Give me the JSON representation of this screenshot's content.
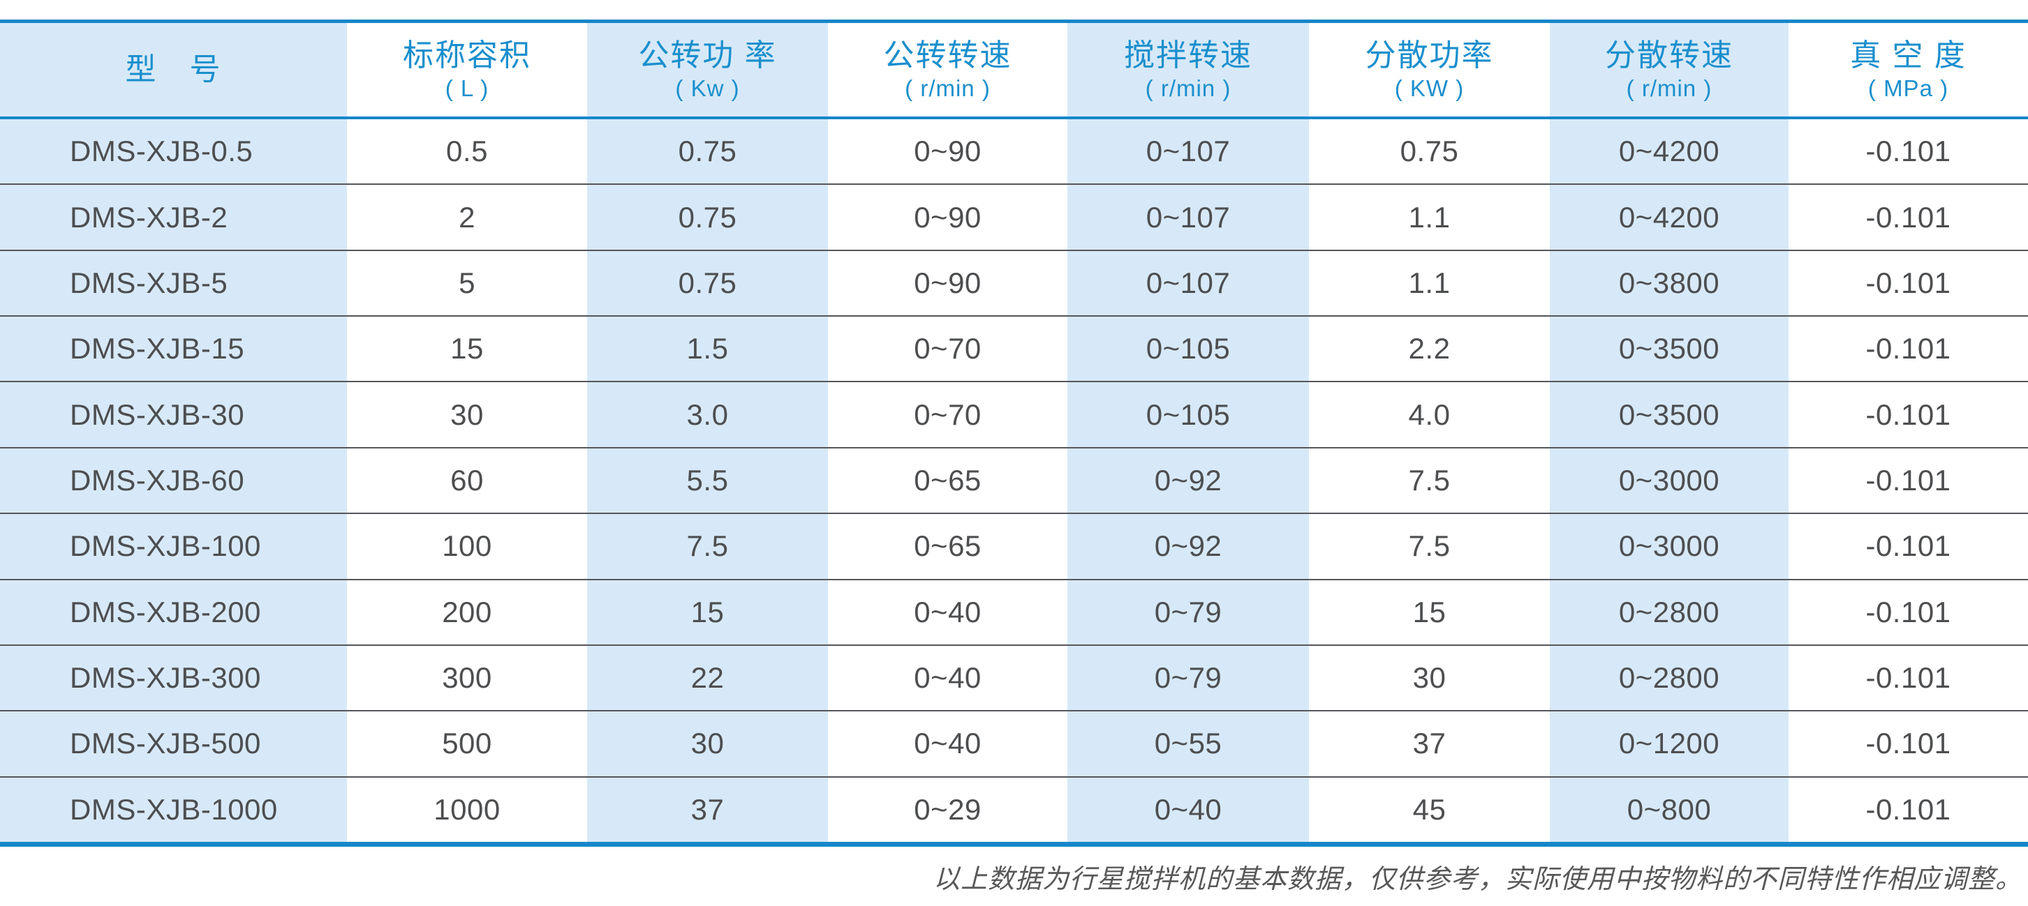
{
  "chart_data": {
    "type": "table",
    "columns": [
      {
        "label": "型　号",
        "unit": ""
      },
      {
        "label": "标称容积",
        "unit": "( L )"
      },
      {
        "label": "公转功 率",
        "unit": "( Kw )"
      },
      {
        "label": "公转转速",
        "unit": "( r/min )"
      },
      {
        "label": "搅拌转速",
        "unit": "( r/min )"
      },
      {
        "label": "分散功率",
        "unit": "( KW )"
      },
      {
        "label": "分散转速",
        "unit": "( r/min )"
      },
      {
        "label": "真 空 度",
        "unit": "( MPa )"
      }
    ],
    "rows": [
      [
        "DMS-XJB-0.5",
        "0.5",
        "0.75",
        "0~90",
        "0~107",
        "0.75",
        "0~4200",
        "-0.101"
      ],
      [
        "DMS-XJB-2",
        "2",
        "0.75",
        "0~90",
        "0~107",
        "1.1",
        "0~4200",
        "-0.101"
      ],
      [
        "DMS-XJB-5",
        "5",
        "0.75",
        "0~90",
        "0~107",
        "1.1",
        "0~3800",
        "-0.101"
      ],
      [
        "DMS-XJB-15",
        "15",
        "1.5",
        "0~70",
        "0~105",
        "2.2",
        "0~3500",
        "-0.101"
      ],
      [
        "DMS-XJB-30",
        "30",
        "3.0",
        "0~70",
        "0~105",
        "4.0",
        "0~3500",
        "-0.101"
      ],
      [
        "DMS-XJB-60",
        "60",
        "5.5",
        "0~65",
        "0~92",
        "7.5",
        "0~3000",
        "-0.101"
      ],
      [
        "DMS-XJB-100",
        "100",
        "7.5",
        "0~65",
        "0~92",
        "7.5",
        "0~3000",
        "-0.101"
      ],
      [
        "DMS-XJB-200",
        "200",
        "15",
        "0~40",
        "0~79",
        "15",
        "0~2800",
        "-0.101"
      ],
      [
        "DMS-XJB-300",
        "300",
        "22",
        "0~40",
        "0~79",
        "30",
        "0~2800",
        "-0.101"
      ],
      [
        "DMS-XJB-500",
        "500",
        "30",
        "0~40",
        "0~55",
        "37",
        "0~1200",
        "-0.101"
      ],
      [
        "DMS-XJB-1000",
        "1000",
        "37",
        "0~29",
        "0~40",
        "45",
        "0~800",
        "-0.101"
      ]
    ]
  },
  "footer": {
    "note": "以上数据为行星搅拌机的基本数据，仅供参考，实际使用中按物料的不同特性作相应调整。"
  },
  "colors": {
    "accent": "#1687c9",
    "header_text": "#1b8fcd",
    "stripe": "#d7e9f8",
    "row_line": "#55565a",
    "data_text": "#4d4e50",
    "note_text": "#585858"
  }
}
